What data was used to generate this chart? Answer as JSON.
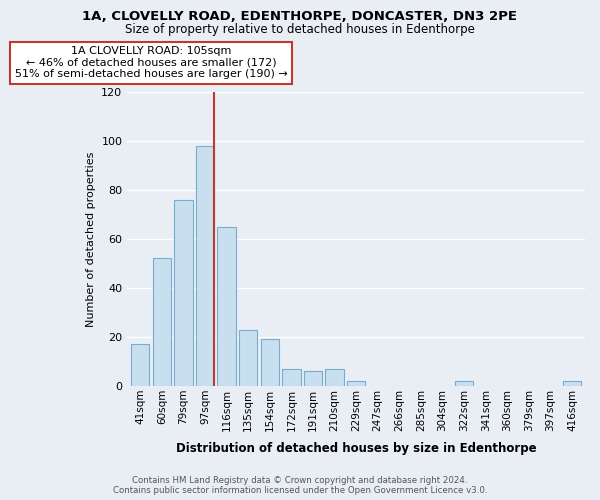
{
  "title1": "1A, CLOVELLY ROAD, EDENTHORPE, DONCASTER, DN3 2PE",
  "title2": "Size of property relative to detached houses in Edenthorpe",
  "xlabel": "Distribution of detached houses by size in Edenthorpe",
  "ylabel": "Number of detached properties",
  "footer1": "Contains HM Land Registry data © Crown copyright and database right 2024.",
  "footer2": "Contains public sector information licensed under the Open Government Licence v3.0.",
  "bar_color": "#c8dff0",
  "bar_edge_color": "#7aabcf",
  "vline_color": "#c0392b",
  "bin_labels": [
    "41sqm",
    "60sqm",
    "79sqm",
    "97sqm",
    "116sqm",
    "135sqm",
    "154sqm",
    "172sqm",
    "191sqm",
    "210sqm",
    "229sqm",
    "247sqm",
    "266sqm",
    "285sqm",
    "304sqm",
    "322sqm",
    "341sqm",
    "360sqm",
    "379sqm",
    "397sqm",
    "416sqm"
  ],
  "bar_heights": [
    17,
    52,
    76,
    98,
    65,
    23,
    19,
    7,
    6,
    7,
    2,
    0,
    0,
    0,
    0,
    2,
    0,
    0,
    0,
    0,
    2
  ],
  "annotation_line1": "1A CLOVELLY ROAD: 105sqm",
  "annotation_line2": "← 46% of detached houses are smaller (172)",
  "annotation_line3": "51% of semi-detached houses are larger (190) →",
  "vline_bar_index": 3,
  "ylim": [
    0,
    120
  ],
  "yticks": [
    0,
    20,
    40,
    60,
    80,
    100,
    120
  ],
  "background_color": "#e8eef4",
  "plot_bg_color": "#e8eef4",
  "grid_color": "#ffffff",
  "ann_box_facecolor": "#ffffff",
  "ann_box_edgecolor": "#c0392b"
}
